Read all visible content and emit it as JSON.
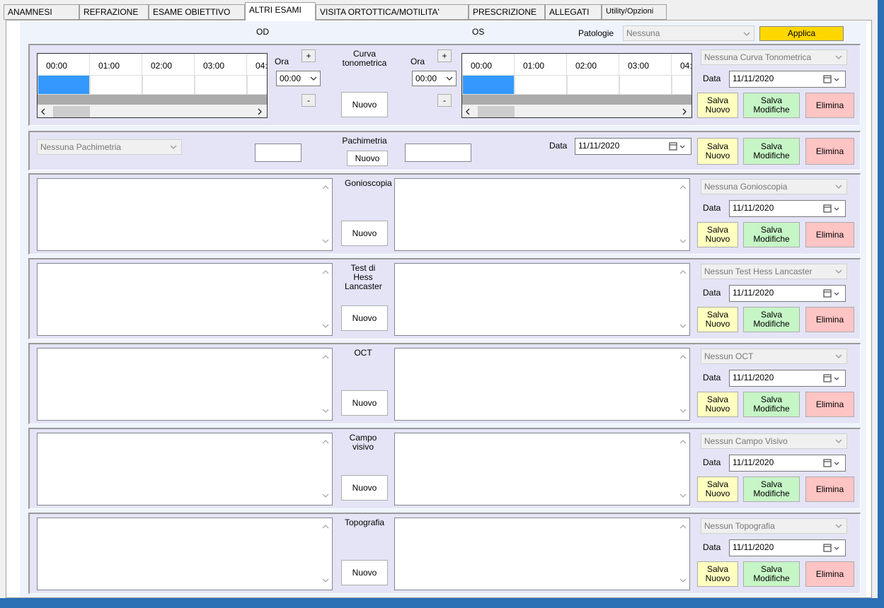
{
  "tabs": [
    "ANAMNESI",
    "REFRAZIONE",
    "ESAME OBIETTIVO",
    "ALTRI ESAMI",
    "VISITA ORTOTTICA/MOTILITA'",
    "PRESCRIZIONE",
    "ALLEGATI",
    "Utility/Opzioni"
  ],
  "active_tab": 3,
  "header": {
    "od_label": "OD",
    "os_label": "OS",
    "pathology_label": "Patologie",
    "pathology_value": "Nessuna",
    "apply_button": "Applica"
  },
  "common": {
    "date_label": "Data",
    "new_button": "Nuovo",
    "save_new_button": "Salva Nuovo",
    "save_changes_button": "Salva Modifiche",
    "delete_button": "Elimina"
  },
  "tonometric_curve": {
    "title": "Curva tonometrica",
    "hour_label": "Ora",
    "hour_value": "00:00",
    "plus_button": "+",
    "minus_button": "-",
    "columns": [
      "00:00",
      "01:00",
      "02:00",
      "03:00",
      "04:"
    ],
    "select": "Nessuna Curva Tonometrica",
    "date": "11/11/2020"
  },
  "pachymetry": {
    "title": "Pachimetria",
    "select": "Nessuna Pachimetria",
    "date": "11/11/2020"
  },
  "exams": [
    {
      "title": "Gonioscopia",
      "select": "Nessuna Gonioscopia",
      "date": "11/11/2020"
    },
    {
      "title": "Test di Hess Lancaster",
      "select": "Nessun Test Hess Lancaster",
      "date": "11/11/2020"
    },
    {
      "title": "OCT",
      "select": "Nessun OCT",
      "date": "11/11/2020"
    },
    {
      "title": "Campo visivo",
      "select": "Nessun Campo Visivo",
      "date": "11/11/2020"
    },
    {
      "title": "Topografia",
      "select": "Nessun Topografia",
      "date": "11/11/2020"
    }
  ]
}
